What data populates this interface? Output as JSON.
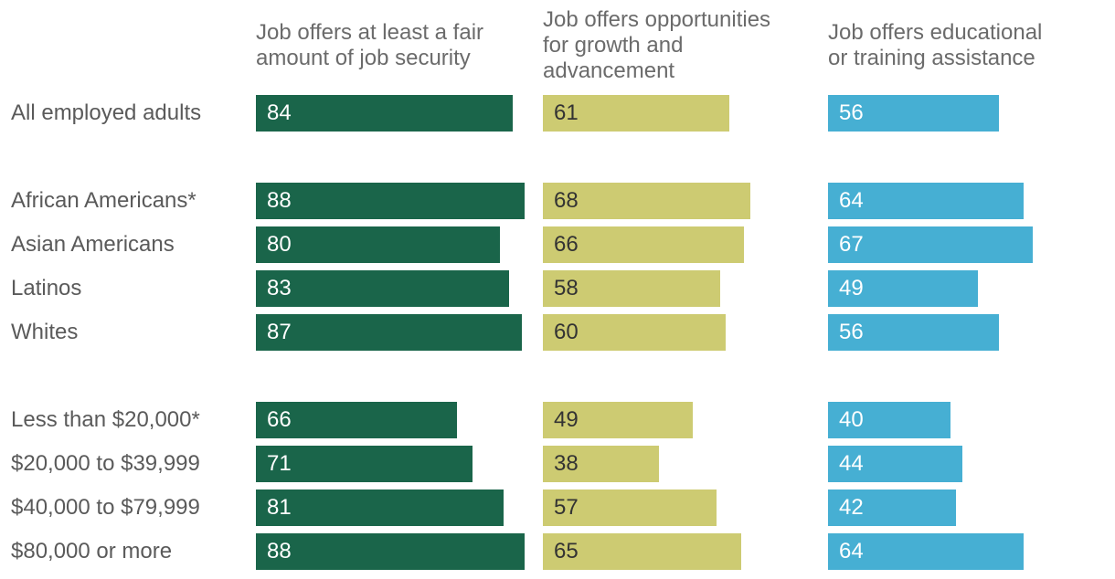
{
  "chart_data": {
    "type": "bar",
    "orientation": "horizontal",
    "title": "",
    "categories": [
      "All employed adults",
      "African Americans*",
      "Asian Americans",
      "Latinos",
      "Whites",
      "Less than $20,000*",
      "$20,000 to $39,999",
      "$40,000 to $79,999",
      "$80,000 or more"
    ],
    "groups": [
      [
        0
      ],
      [
        1,
        2,
        3,
        4
      ],
      [
        5,
        6,
        7,
        8
      ]
    ],
    "series": [
      {
        "name": "Job offers at least a fair amount of job security",
        "color": "#1a654a",
        "label_color": "#ffffff",
        "values": [
          84,
          88,
          80,
          83,
          87,
          66,
          71,
          81,
          88
        ]
      },
      {
        "name": "Job offers opportunities for growth and advancement",
        "color": "#cdcb72",
        "label_color": "#333333",
        "values": [
          61,
          68,
          66,
          58,
          60,
          49,
          38,
          57,
          65
        ]
      },
      {
        "name": "Job offers educational or training assistance",
        "color": "#46afd3",
        "label_color": "#ffffff",
        "values": [
          56,
          64,
          67,
          49,
          56,
          40,
          44,
          42,
          64
        ]
      }
    ],
    "xlim": [
      0,
      100
    ],
    "grid": false,
    "legend": "none"
  }
}
